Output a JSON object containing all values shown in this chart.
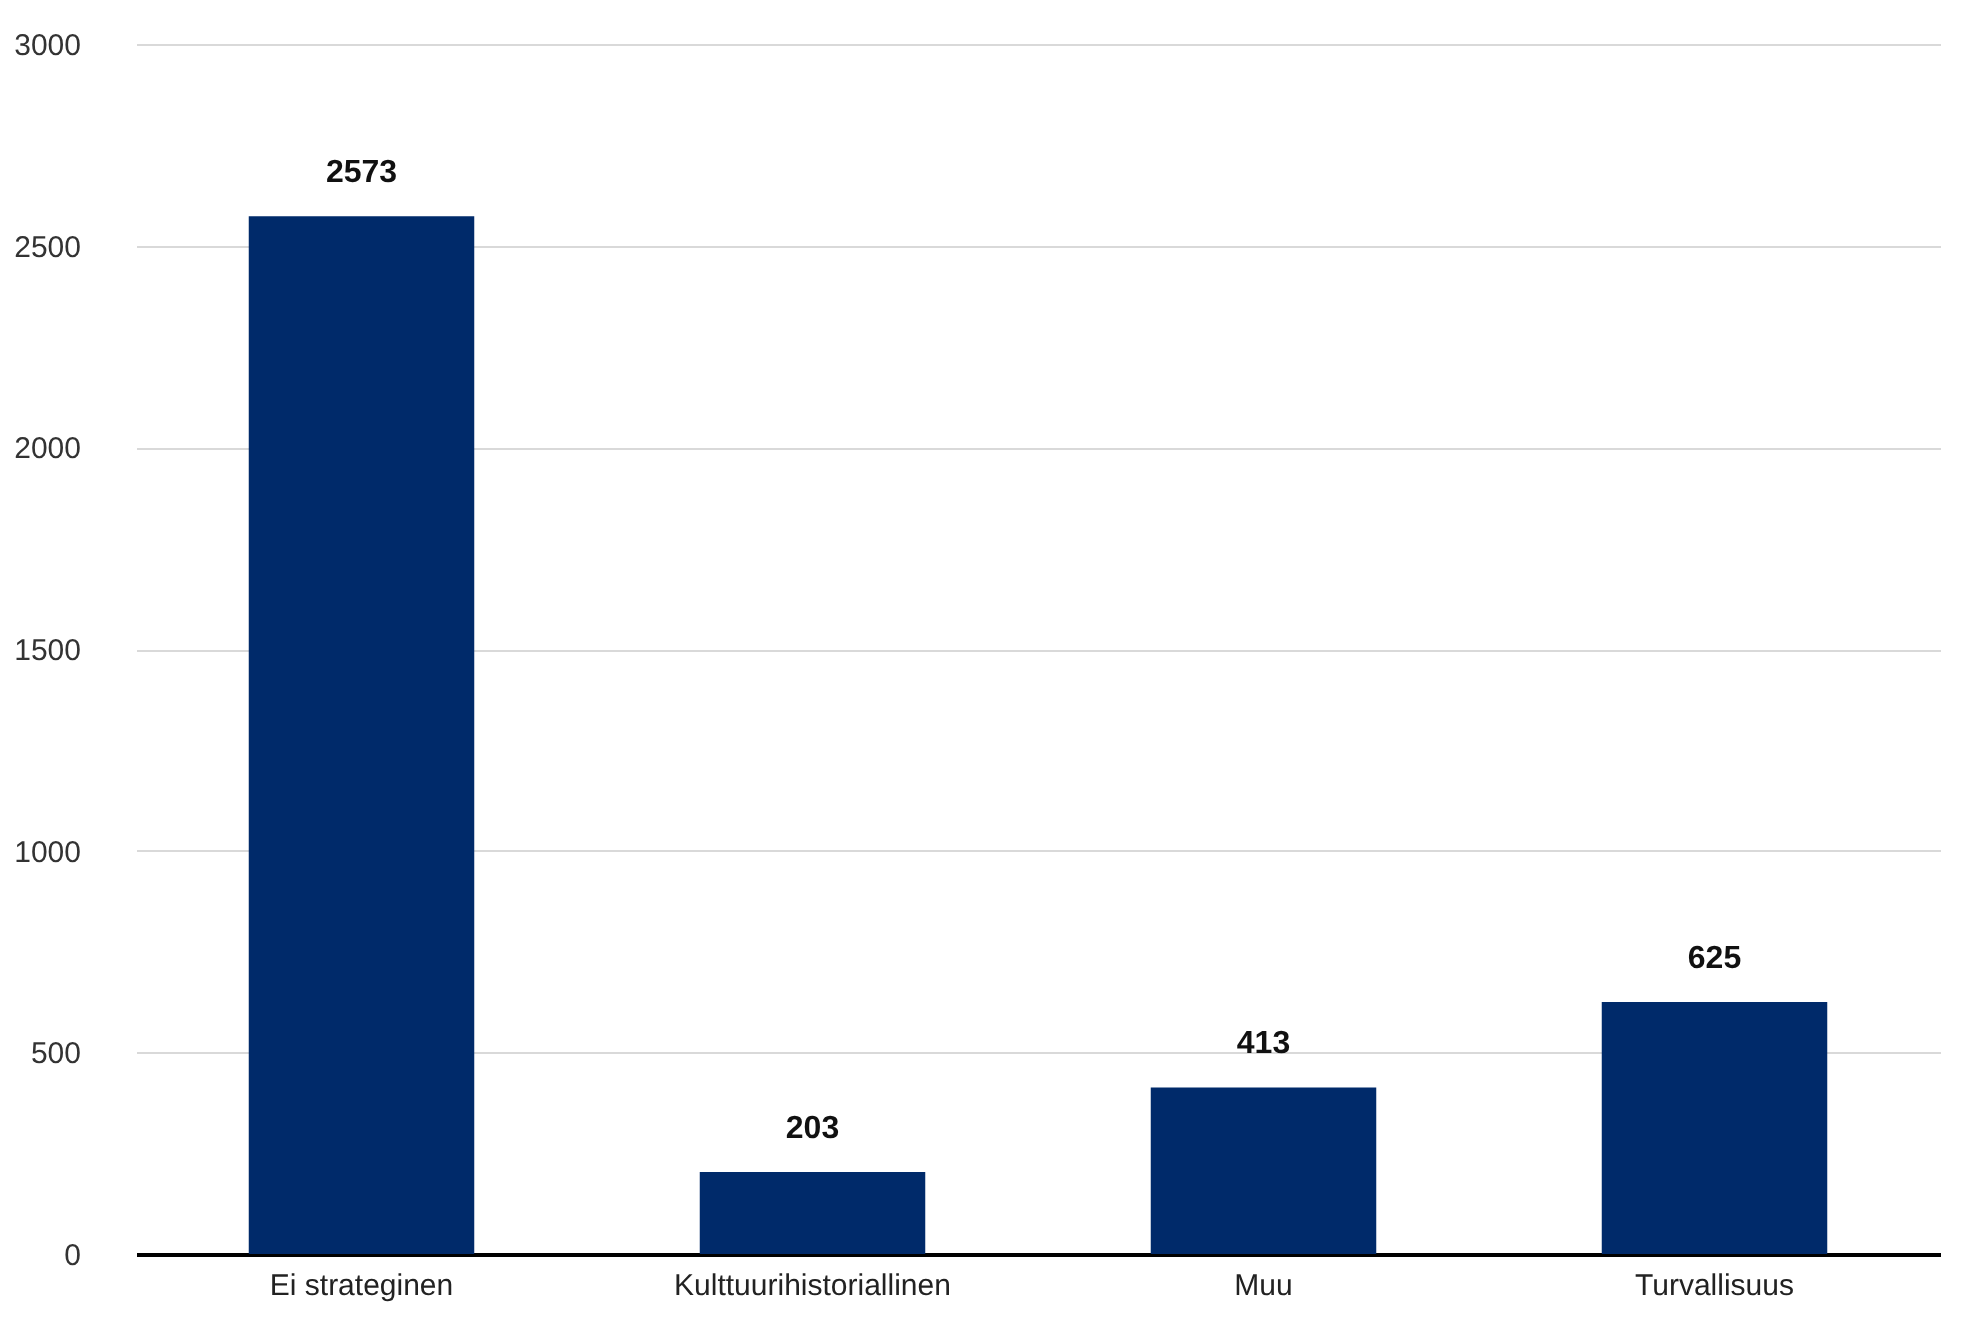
{
  "chart_data": {
    "type": "bar",
    "categories": [
      "Ei strateginen",
      "Kulttuurihistoriallinen",
      "Muu",
      "Turvallisuus"
    ],
    "values": [
      2573,
      203,
      413,
      625
    ],
    "color": "#002a6a",
    "ylim": [
      0,
      3000
    ],
    "yticks": [
      0,
      500,
      1000,
      1500,
      2000,
      2500,
      3000
    ],
    "grid": "y",
    "data_labels": true
  }
}
